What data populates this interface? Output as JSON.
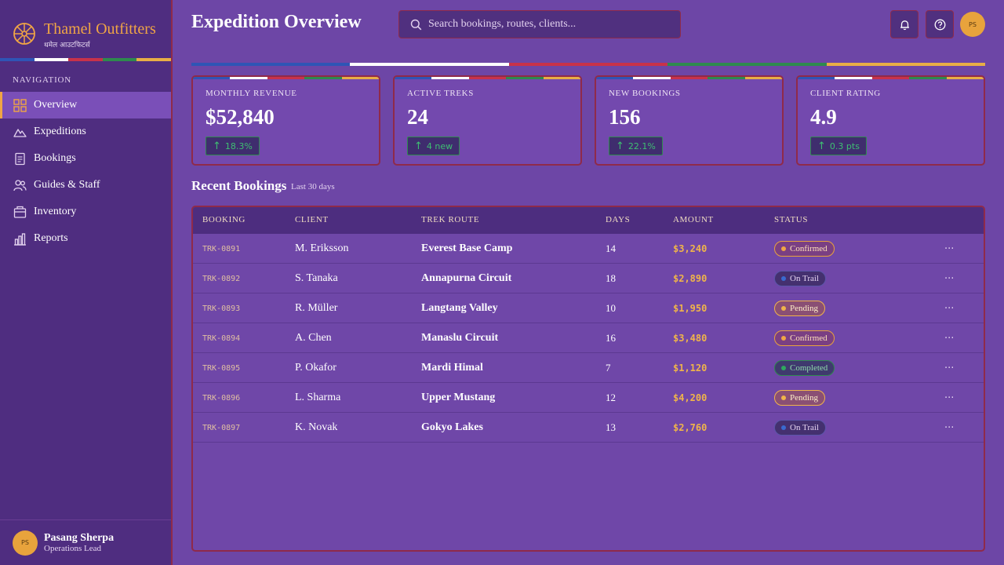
{
  "brand": {
    "name": "Thamel Outfitters",
    "subtitle": "थमेल आउटफिटर्स"
  },
  "nav": {
    "heading": "NAVIGATION",
    "items": [
      {
        "label": "Overview",
        "icon": "grid-icon",
        "active": true
      },
      {
        "label": "Expeditions",
        "icon": "mountain-icon",
        "active": false
      },
      {
        "label": "Bookings",
        "icon": "document-icon",
        "active": false
      },
      {
        "label": "Guides & Staff",
        "icon": "users-icon",
        "active": false
      },
      {
        "label": "Inventory",
        "icon": "box-icon",
        "active": false
      },
      {
        "label": "Reports",
        "icon": "bar-chart-icon",
        "active": false
      }
    ]
  },
  "user": {
    "initials": "PS",
    "name": "Pasang Sherpa",
    "role": "Operations Lead"
  },
  "header": {
    "title": "Expedition Overview",
    "search_placeholder": "Search bookings, routes, clients..."
  },
  "kpis": [
    {
      "label": "MONTHLY REVENUE",
      "value": "$52,840",
      "delta": "18.3%"
    },
    {
      "label": "ACTIVE TREKS",
      "value": "24",
      "delta": "4 new"
    },
    {
      "label": "NEW BOOKINGS",
      "value": "156",
      "delta": "22.1%"
    },
    {
      "label": "CLIENT RATING",
      "value": "4.9",
      "delta": "0.3 pts"
    }
  ],
  "recent": {
    "title": "Recent Bookings",
    "subtitle": "Last 30 days",
    "columns": [
      "BOOKING",
      "CLIENT",
      "TREK ROUTE",
      "DAYS",
      "AMOUNT",
      "STATUS"
    ],
    "rows": [
      {
        "id": "TRK-0891",
        "client": "M. Eriksson",
        "route": "Everest Base Camp",
        "days": "14",
        "amount": "$3,240",
        "status": "Confirmed",
        "status_kind": "confirmed"
      },
      {
        "id": "TRK-0892",
        "client": "S. Tanaka",
        "route": "Annapurna Circuit",
        "days": "18",
        "amount": "$2,890",
        "status": "On Trail",
        "status_kind": "ontrail"
      },
      {
        "id": "TRK-0893",
        "client": "R. Müller",
        "route": "Langtang Valley",
        "days": "10",
        "amount": "$1,950",
        "status": "Pending",
        "status_kind": "pending"
      },
      {
        "id": "TRK-0894",
        "client": "A. Chen",
        "route": "Manaslu Circuit",
        "days": "16",
        "amount": "$3,480",
        "status": "Confirmed",
        "status_kind": "confirmed"
      },
      {
        "id": "TRK-0895",
        "client": "P. Okafor",
        "route": "Mardi Himal",
        "days": "7",
        "amount": "$1,120",
        "status": "Completed",
        "status_kind": "completed"
      },
      {
        "id": "TRK-0896",
        "client": "L. Sharma",
        "route": "Upper Mustang",
        "days": "12",
        "amount": "$4,200",
        "status": "Pending",
        "status_kind": "pending"
      },
      {
        "id": "TRK-0897",
        "client": "K. Novak",
        "route": "Gokyo Lakes",
        "days": "13",
        "amount": "$2,760",
        "status": "On Trail",
        "status_kind": "ontrail"
      }
    ]
  },
  "colors": {
    "accent": "#f0a545",
    "background": "#6d46a6",
    "sidebar": "#4f2d80",
    "border": "#8f2a4a",
    "flag": [
      "#2f55b5",
      "#ffffff",
      "#c8324a",
      "#2e8a4e",
      "#e8ae46"
    ]
  }
}
